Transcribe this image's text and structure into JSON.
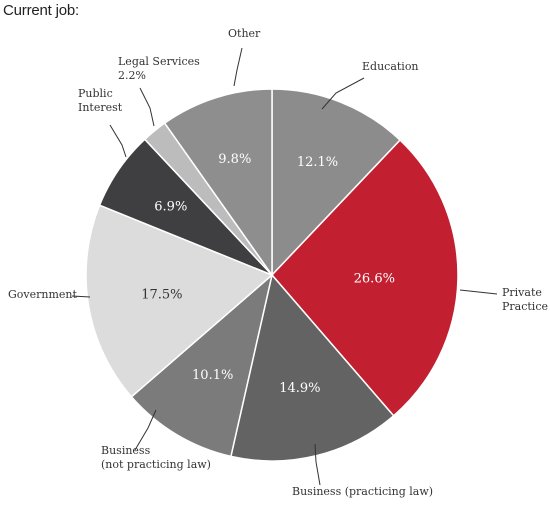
{
  "header": {
    "title": "Current job:"
  },
  "chart_data": {
    "type": "pie",
    "title": "Current job:",
    "slices": [
      {
        "name": "Education",
        "label_lines": [
          "Education"
        ],
        "value": 12.1,
        "value_label": "12.1%",
        "color": "#8c8c8c",
        "text_color": "#ffffff"
      },
      {
        "name": "Private Practice",
        "label_lines": [
          "Private",
          "Practice"
        ],
        "value": 26.6,
        "value_label": "26.6%",
        "color": "#c21f31",
        "text_color": "#ffffff"
      },
      {
        "name": "Business (practicing law)",
        "label_lines": [
          "Business (practicing law)"
        ],
        "value": 14.9,
        "value_label": "14.9%",
        "color": "#636363",
        "text_color": "#ffffff"
      },
      {
        "name": "Business (not practicing law)",
        "label_lines": [
          "Business",
          "(not practicing law)"
        ],
        "value": 10.1,
        "value_label": "10.1%",
        "color": "#7b7b7b",
        "text_color": "#ffffff"
      },
      {
        "name": "Government",
        "label_lines": [
          "Government"
        ],
        "value": 17.5,
        "value_label": "17.5%",
        "color": "#dcdcdd",
        "text_color": "#333333"
      },
      {
        "name": "Public Interest",
        "label_lines": [
          "Public",
          "Interest"
        ],
        "value": 6.9,
        "value_label": "6.9%",
        "color": "#3f3f41",
        "text_color": "#ffffff"
      },
      {
        "name": "Legal Services",
        "label_lines": [
          "Legal Services",
          "2.2%"
        ],
        "value": 2.2,
        "value_label": "",
        "color": "#bcbcbd",
        "text_color": "#333333"
      },
      {
        "name": "Other",
        "label_lines": [
          "Other"
        ],
        "value": 9.8,
        "value_label": "9.8%",
        "color": "#8e8e8e",
        "text_color": "#ffffff"
      }
    ]
  }
}
